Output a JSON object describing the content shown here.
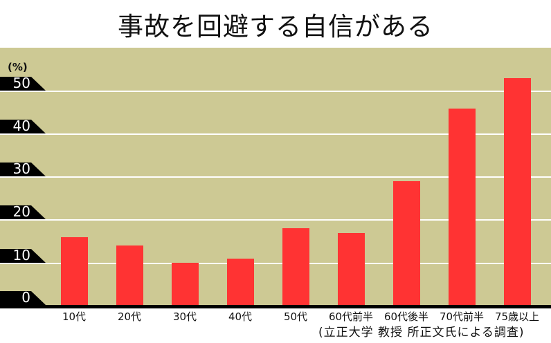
{
  "header": {
    "title": "事故を回避する自信がある"
  },
  "axis": {
    "unit": "(%)",
    "ticks": [
      "0",
      "10",
      "20",
      "30",
      "40",
      "50"
    ]
  },
  "source": "(立正大学 教授 所正文氏による調査)",
  "colors": {
    "background": "#cdc994",
    "bar": "#ff3333",
    "grid": "#ffffff",
    "tag": "#000000"
  },
  "chart_data": {
    "type": "bar",
    "title": "事故を回避する自信がある",
    "xlabel": "",
    "ylabel": "(%)",
    "ylim": [
      0,
      55
    ],
    "grid": true,
    "categories": [
      "10代",
      "20代",
      "30代",
      "40代",
      "50代",
      "60代前半",
      "60代後半",
      "70代前半",
      "75歳以上"
    ],
    "values": [
      16,
      14,
      10,
      11,
      18,
      17,
      29,
      46,
      53
    ],
    "annotations": [
      "(立正大学 教授 所正文氏による調査)"
    ]
  }
}
